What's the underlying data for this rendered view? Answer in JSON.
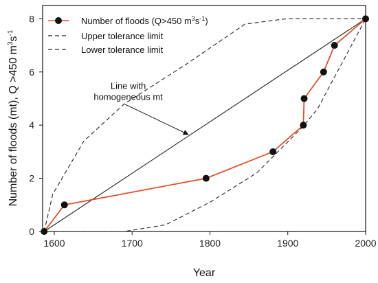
{
  "chart_data": {
    "type": "line",
    "xlabel": "Year",
    "ylabel": "Number of floods (mt), Q >450 m³s⁻¹",
    "xlim": [
      1585,
      2000
    ],
    "ylim": [
      0,
      8.5
    ],
    "xticks": [
      1600,
      1700,
      1800,
      1900,
      2000
    ],
    "yticks": [
      0,
      2,
      4,
      6,
      8
    ],
    "grid": false,
    "legend_position": "top-left",
    "series": [
      {
        "name": "Number of floods (Q>450 m³s⁻¹)",
        "style": "line-markers",
        "color": "#e0502a",
        "x": [
          1587,
          1613,
          1795,
          1881,
          1920,
          1921,
          1946,
          1960,
          2000
        ],
        "y": [
          0,
          1,
          2,
          3,
          4,
          5,
          6,
          7,
          8
        ]
      },
      {
        "name": "Upper tolerance limit",
        "style": "dashed",
        "color": "#222222",
        "x": [
          1587,
          1598,
          1638,
          1690,
          1770,
          1845,
          1898,
          2000
        ],
        "y": [
          0,
          1.4,
          3.4,
          4.8,
          6.3,
          7.8,
          8,
          8
        ]
      },
      {
        "name": "Lower tolerance limit",
        "style": "dashed",
        "color": "#222222",
        "x": [
          1587,
          1690,
          1743,
          1800,
          1860,
          1918,
          1938,
          2000
        ],
        "y": [
          0,
          0,
          0.25,
          1.1,
          2.2,
          3.9,
          4.6,
          8
        ]
      },
      {
        "name": "Line with homogeneous mt",
        "style": "solid",
        "color": "#222222",
        "x": [
          1587,
          2000
        ],
        "y": [
          0,
          8
        ]
      }
    ],
    "annotations": [
      {
        "text_lines": [
          "Line with",
          "homogeneous mt"
        ],
        "anchor": {
          "x": 1695,
          "y": 5.15
        },
        "arrow_to": {
          "x": 1772,
          "y": 3.65
        }
      }
    ]
  },
  "legend": {
    "floods_label_main": "Number of floods (Q>450 m",
    "floods_label_sup1": "3",
    "floods_label_s": "s",
    "floods_label_sup2": "-1",
    "floods_label_close": ")",
    "upper_label": "Upper tolerance limit",
    "lower_label": "Lower tolerance limit"
  },
  "axes": {
    "xlabel": "Year",
    "ylabel_main": "Number of floods (mt), Q >450 m",
    "ylabel_sup1": "3",
    "ylabel_s": "s",
    "ylabel_sup2": "-1"
  }
}
